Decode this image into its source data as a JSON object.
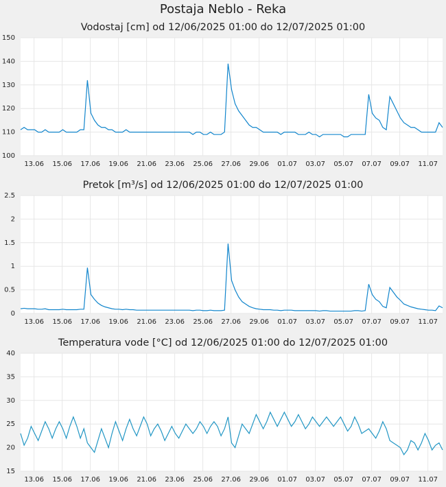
{
  "title": "Postaja Neblo - Reka",
  "chart_data": [
    {
      "type": "line",
      "title": "Vodostaj [cm] od 12/06/2025 01:00 do 12/07/2025 01:00",
      "color": "#1185cc",
      "x": [
        "12.06 01:00",
        "12.06 07:00",
        "12.06 13:00",
        "12.06 19:00",
        "13.06 01:00",
        "13.06 07:00",
        "13.06 13:00",
        "13.06 19:00",
        "14.06 01:00",
        "14.06 07:00",
        "14.06 13:00",
        "14.06 19:00",
        "15.06 01:00",
        "15.06 07:00",
        "15.06 13:00",
        "15.06 19:00",
        "16.06 01:00",
        "16.06 07:00",
        "16.06 13:00",
        "16.06 19:00",
        "17.06 01:00",
        "17.06 07:00",
        "17.06 13:00",
        "17.06 19:00",
        "18.06 01:00",
        "18.06 07:00",
        "18.06 13:00",
        "18.06 19:00",
        "19.06 01:00",
        "19.06 07:00",
        "19.06 13:00",
        "19.06 19:00",
        "20.06 01:00",
        "20.06 07:00",
        "20.06 13:00",
        "20.06 19:00",
        "21.06 01:00",
        "21.06 07:00",
        "21.06 13:00",
        "21.06 19:00",
        "22.06 01:00",
        "22.06 07:00",
        "22.06 13:00",
        "22.06 19:00",
        "23.06 01:00",
        "23.06 07:00",
        "23.06 13:00",
        "23.06 19:00",
        "24.06 01:00",
        "24.06 07:00",
        "24.06 13:00",
        "24.06 19:00",
        "25.06 01:00",
        "25.06 07:00",
        "25.06 13:00",
        "25.06 19:00",
        "26.06 01:00",
        "26.06 07:00",
        "26.06 13:00",
        "26.06 19:00",
        "27.06 01:00",
        "27.06 07:00",
        "27.06 13:00",
        "27.06 19:00",
        "28.06 01:00",
        "28.06 07:00",
        "28.06 13:00",
        "28.06 19:00",
        "29.06 01:00",
        "29.06 07:00",
        "29.06 13:00",
        "29.06 19:00",
        "30.06 01:00",
        "30.06 07:00",
        "30.06 13:00",
        "30.06 19:00",
        "01.07 01:00",
        "01.07 07:00",
        "01.07 13:00",
        "01.07 19:00",
        "02.07 01:00",
        "02.07 07:00",
        "02.07 13:00",
        "02.07 19:00",
        "03.07 01:00",
        "03.07 07:00",
        "03.07 13:00",
        "03.07 19:00",
        "04.07 01:00",
        "04.07 07:00",
        "04.07 13:00",
        "04.07 19:00",
        "05.07 01:00",
        "05.07 07:00",
        "05.07 13:00",
        "05.07 19:00",
        "06.07 01:00",
        "06.07 07:00",
        "06.07 13:00",
        "06.07 19:00",
        "07.07 01:00",
        "07.07 07:00",
        "07.07 13:00",
        "07.07 19:00",
        "08.07 01:00",
        "08.07 07:00",
        "08.07 13:00",
        "08.07 19:00",
        "09.07 01:00",
        "09.07 07:00",
        "09.07 13:00",
        "09.07 19:00",
        "10.07 01:00",
        "10.07 07:00",
        "10.07 13:00",
        "10.07 19:00",
        "11.07 01:00",
        "11.07 07:00",
        "11.07 13:00",
        "11.07 19:00",
        "12.07 01:00"
      ],
      "values": [
        111,
        112,
        111,
        111,
        111,
        110,
        110,
        111,
        110,
        110,
        110,
        110,
        111,
        110,
        110,
        110,
        110,
        111,
        111,
        132,
        118,
        115,
        113,
        112,
        112,
        111,
        111,
        110,
        110,
        110,
        111,
        110,
        110,
        110,
        110,
        110,
        110,
        110,
        110,
        110,
        110,
        110,
        110,
        110,
        110,
        110,
        110,
        110,
        110,
        109,
        110,
        110,
        109,
        109,
        110,
        109,
        109,
        109,
        110,
        139,
        128,
        122,
        119,
        117,
        115,
        113,
        112,
        112,
        111,
        110,
        110,
        110,
        110,
        110,
        109,
        110,
        110,
        110,
        110,
        109,
        109,
        109,
        110,
        109,
        109,
        108,
        109,
        109,
        109,
        109,
        109,
        109,
        108,
        108,
        109,
        109,
        109,
        109,
        109,
        126,
        118,
        116,
        115,
        112,
        111,
        125,
        122,
        119,
        116,
        114,
        113,
        112,
        112,
        111,
        110,
        110,
        110,
        110,
        110,
        114,
        112
      ],
      "xlim": [
        "12.06 01:00",
        "12.07 01:00"
      ],
      "xticks": [
        "13.06",
        "15.06",
        "17.06",
        "19.06",
        "21.06",
        "23.06",
        "25.06",
        "27.06",
        "29.06",
        "01.07",
        "03.07",
        "05.07",
        "07.07",
        "09.07",
        "11.07"
      ],
      "ylim": [
        100,
        150
      ],
      "yticks": [
        100,
        110,
        120,
        130,
        140,
        150
      ],
      "grid": true
    },
    {
      "type": "line",
      "title": "Pretok [m³/s] od 12/06/2025 01:00 do 12/07/2025 01:00",
      "color": "#1185cc",
      "x": [
        "12.06 01:00",
        "12.06 07:00",
        "12.06 13:00",
        "12.06 19:00",
        "13.06 01:00",
        "13.06 07:00",
        "13.06 13:00",
        "13.06 19:00",
        "14.06 01:00",
        "14.06 07:00",
        "14.06 13:00",
        "14.06 19:00",
        "15.06 01:00",
        "15.06 07:00",
        "15.06 13:00",
        "15.06 19:00",
        "16.06 01:00",
        "16.06 07:00",
        "16.06 13:00",
        "16.06 19:00",
        "17.06 01:00",
        "17.06 07:00",
        "17.06 13:00",
        "17.06 19:00",
        "18.06 01:00",
        "18.06 07:00",
        "18.06 13:00",
        "18.06 19:00",
        "19.06 01:00",
        "19.06 07:00",
        "19.06 13:00",
        "19.06 19:00",
        "20.06 01:00",
        "20.06 07:00",
        "20.06 13:00",
        "20.06 19:00",
        "21.06 01:00",
        "21.06 07:00",
        "21.06 13:00",
        "21.06 19:00",
        "22.06 01:00",
        "22.06 07:00",
        "22.06 13:00",
        "22.06 19:00",
        "23.06 01:00",
        "23.06 07:00",
        "23.06 13:00",
        "23.06 19:00",
        "24.06 01:00",
        "24.06 07:00",
        "24.06 13:00",
        "24.06 19:00",
        "25.06 01:00",
        "25.06 07:00",
        "25.06 13:00",
        "25.06 19:00",
        "26.06 01:00",
        "26.06 07:00",
        "26.06 13:00",
        "26.06 19:00",
        "27.06 01:00",
        "27.06 07:00",
        "27.06 13:00",
        "27.06 19:00",
        "28.06 01:00",
        "28.06 07:00",
        "28.06 13:00",
        "28.06 19:00",
        "29.06 01:00",
        "29.06 07:00",
        "29.06 13:00",
        "29.06 19:00",
        "30.06 01:00",
        "30.06 07:00",
        "30.06 13:00",
        "30.06 19:00",
        "01.07 01:00",
        "01.07 07:00",
        "01.07 13:00",
        "01.07 19:00",
        "02.07 01:00",
        "02.07 07:00",
        "02.07 13:00",
        "02.07 19:00",
        "03.07 01:00",
        "03.07 07:00",
        "03.07 13:00",
        "03.07 19:00",
        "04.07 01:00",
        "04.07 07:00",
        "04.07 13:00",
        "04.07 19:00",
        "05.07 01:00",
        "05.07 07:00",
        "05.07 13:00",
        "05.07 19:00",
        "06.07 01:00",
        "06.07 07:00",
        "06.07 13:00",
        "06.07 19:00",
        "07.07 01:00",
        "07.07 07:00",
        "07.07 13:00",
        "07.07 19:00",
        "08.07 01:00",
        "08.07 07:00",
        "08.07 13:00",
        "08.07 19:00",
        "09.07 01:00",
        "09.07 07:00",
        "09.07 13:00",
        "09.07 19:00",
        "10.07 01:00",
        "10.07 07:00",
        "10.07 13:00",
        "10.07 19:00",
        "11.07 01:00",
        "11.07 07:00",
        "11.07 13:00",
        "11.07 19:00",
        "12.07 01:00"
      ],
      "values": [
        0.1,
        0.11,
        0.1,
        0.1,
        0.1,
        0.09,
        0.09,
        0.1,
        0.08,
        0.08,
        0.08,
        0.08,
        0.09,
        0.08,
        0.08,
        0.08,
        0.08,
        0.09,
        0.09,
        0.97,
        0.4,
        0.3,
        0.22,
        0.17,
        0.14,
        0.12,
        0.1,
        0.09,
        0.09,
        0.08,
        0.09,
        0.08,
        0.08,
        0.07,
        0.07,
        0.07,
        0.07,
        0.07,
        0.07,
        0.07,
        0.07,
        0.07,
        0.07,
        0.07,
        0.07,
        0.07,
        0.07,
        0.07,
        0.07,
        0.06,
        0.07,
        0.07,
        0.06,
        0.06,
        0.07,
        0.06,
        0.06,
        0.06,
        0.07,
        1.48,
        0.7,
        0.5,
        0.35,
        0.25,
        0.2,
        0.15,
        0.12,
        0.1,
        0.09,
        0.08,
        0.08,
        0.08,
        0.07,
        0.07,
        0.06,
        0.07,
        0.07,
        0.07,
        0.06,
        0.06,
        0.06,
        0.06,
        0.06,
        0.06,
        0.06,
        0.05,
        0.06,
        0.06,
        0.05,
        0.05,
        0.05,
        0.05,
        0.05,
        0.05,
        0.05,
        0.06,
        0.06,
        0.05,
        0.06,
        0.62,
        0.4,
        0.3,
        0.25,
        0.15,
        0.12,
        0.55,
        0.45,
        0.35,
        0.28,
        0.2,
        0.17,
        0.14,
        0.12,
        0.1,
        0.09,
        0.08,
        0.07,
        0.07,
        0.06,
        0.16,
        0.12
      ],
      "xlim": [
        "12.06 01:00",
        "12.07 01:00"
      ],
      "xticks": [
        "13.06",
        "15.06",
        "17.06",
        "19.06",
        "21.06",
        "23.06",
        "25.06",
        "27.06",
        "29.06",
        "01.07",
        "03.07",
        "05.07",
        "07.07",
        "09.07",
        "11.07"
      ],
      "ylim": [
        0,
        2.5
      ],
      "yticks": [
        0,
        0.5,
        1,
        1.5,
        2,
        2.5
      ],
      "grid": true
    },
    {
      "type": "line",
      "title": "Temperatura vode [°C] od 12/06/2025 01:00 do 12/07/2025 01:00",
      "color": "#2196c4",
      "x": [
        "12.06 01:00",
        "12.06 07:00",
        "12.06 13:00",
        "12.06 19:00",
        "13.06 01:00",
        "13.06 07:00",
        "13.06 13:00",
        "13.06 19:00",
        "14.06 01:00",
        "14.06 07:00",
        "14.06 13:00",
        "14.06 19:00",
        "15.06 01:00",
        "15.06 07:00",
        "15.06 13:00",
        "15.06 19:00",
        "16.06 01:00",
        "16.06 07:00",
        "16.06 13:00",
        "16.06 19:00",
        "17.06 01:00",
        "17.06 07:00",
        "17.06 13:00",
        "17.06 19:00",
        "18.06 01:00",
        "18.06 07:00",
        "18.06 13:00",
        "18.06 19:00",
        "19.06 01:00",
        "19.06 07:00",
        "19.06 13:00",
        "19.06 19:00",
        "20.06 01:00",
        "20.06 07:00",
        "20.06 13:00",
        "20.06 19:00",
        "21.06 01:00",
        "21.06 07:00",
        "21.06 13:00",
        "21.06 19:00",
        "22.06 01:00",
        "22.06 07:00",
        "22.06 13:00",
        "22.06 19:00",
        "23.06 01:00",
        "23.06 07:00",
        "23.06 13:00",
        "23.06 19:00",
        "24.06 01:00",
        "24.06 07:00",
        "24.06 13:00",
        "24.06 19:00",
        "25.06 01:00",
        "25.06 07:00",
        "25.06 13:00",
        "25.06 19:00",
        "26.06 01:00",
        "26.06 07:00",
        "26.06 13:00",
        "26.06 19:00",
        "27.06 01:00",
        "27.06 07:00",
        "27.06 13:00",
        "27.06 19:00",
        "28.06 01:00",
        "28.06 07:00",
        "28.06 13:00",
        "28.06 19:00",
        "29.06 01:00",
        "29.06 07:00",
        "29.06 13:00",
        "29.06 19:00",
        "30.06 01:00",
        "30.06 07:00",
        "30.06 13:00",
        "30.06 19:00",
        "01.07 01:00",
        "01.07 07:00",
        "01.07 13:00",
        "01.07 19:00",
        "02.07 01:00",
        "02.07 07:00",
        "02.07 13:00",
        "02.07 19:00",
        "03.07 01:00",
        "03.07 07:00",
        "03.07 13:00",
        "03.07 19:00",
        "04.07 01:00",
        "04.07 07:00",
        "04.07 13:00",
        "04.07 19:00",
        "05.07 01:00",
        "05.07 07:00",
        "05.07 13:00",
        "05.07 19:00",
        "06.07 01:00",
        "06.07 07:00",
        "06.07 13:00",
        "06.07 19:00",
        "07.07 01:00",
        "07.07 07:00",
        "07.07 13:00",
        "07.07 19:00",
        "08.07 01:00",
        "08.07 07:00",
        "08.07 13:00",
        "08.07 19:00",
        "09.07 01:00",
        "09.07 07:00",
        "09.07 13:00",
        "09.07 19:00",
        "10.07 01:00",
        "10.07 07:00",
        "10.07 13:00",
        "10.07 19:00",
        "11.07 01:00",
        "11.07 07:00",
        "11.07 13:00",
        "11.07 19:00",
        "12.07 01:00"
      ],
      "values": [
        23,
        20.5,
        22,
        24.5,
        23,
        21.5,
        23.5,
        25.5,
        24,
        22,
        24,
        25.5,
        24,
        22,
        24.5,
        26.5,
        24.5,
        22,
        24,
        21,
        20,
        19,
        21.5,
        24,
        22,
        20,
        23,
        25.5,
        23.5,
        21.5,
        24,
        26,
        24,
        22.5,
        24.5,
        26.5,
        25,
        22.5,
        24,
        25,
        23.5,
        21.5,
        23,
        24.5,
        23,
        22,
        23.5,
        25,
        24,
        23,
        24,
        25.5,
        24.5,
        23,
        24.5,
        25.5,
        24.5,
        22.5,
        24,
        26.5,
        21,
        20,
        22.5,
        25,
        24,
        23,
        25,
        27,
        25.5,
        24,
        25.5,
        27.5,
        26,
        24.5,
        26,
        27.5,
        26,
        24.5,
        25.5,
        27,
        25.5,
        24,
        25,
        26.5,
        25.5,
        24.5,
        25.5,
        26.5,
        25.5,
        24.5,
        25.5,
        26.5,
        25,
        23.5,
        24.5,
        26.5,
        25,
        23,
        23.5,
        24,
        23,
        22,
        23.5,
        25.5,
        24,
        21.5,
        21,
        20.5,
        20,
        18.5,
        19.5,
        21.5,
        21,
        19.5,
        21,
        23,
        21.5,
        19.5,
        20.5,
        21,
        19.5
      ],
      "xlim": [
        "12.06 01:00",
        "12.07 01:00"
      ],
      "xticks": [
        "13.06",
        "15.06",
        "17.06",
        "19.06",
        "21.06",
        "23.06",
        "25.06",
        "27.06",
        "29.06",
        "01.07",
        "03.07",
        "05.07",
        "07.07",
        "09.07",
        "11.07"
      ],
      "ylim": [
        15,
        40
      ],
      "yticks": [
        15,
        20,
        25,
        30,
        35,
        40
      ],
      "grid": true
    }
  ]
}
